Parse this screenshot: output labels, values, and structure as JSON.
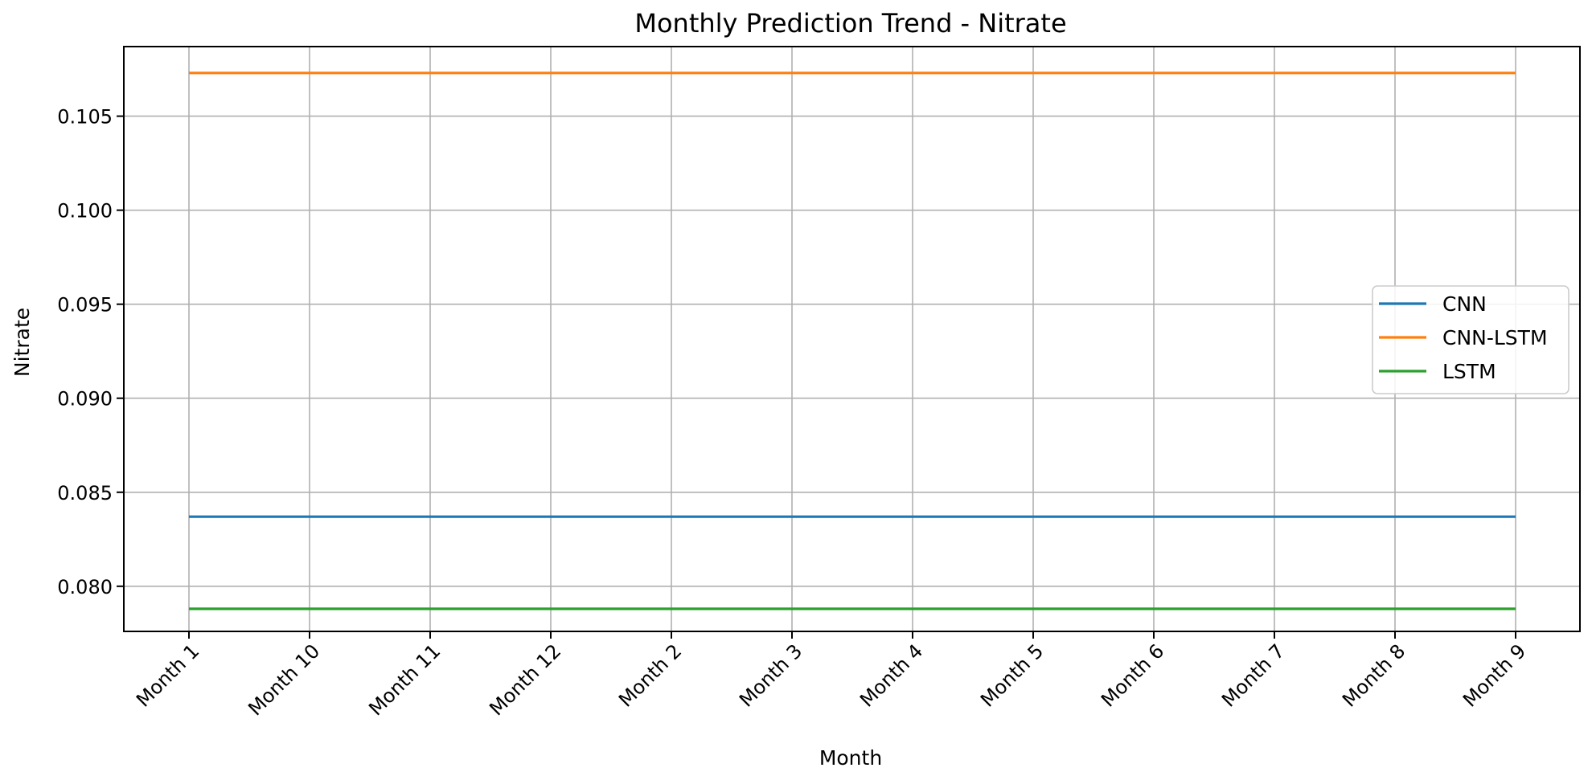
{
  "chart_data": {
    "type": "line",
    "title": "Monthly Prediction Trend - Nitrate",
    "xlabel": "Month",
    "ylabel": "Nitrate",
    "categories": [
      "Month 1",
      "Month 10",
      "Month 11",
      "Month 12",
      "Month 2",
      "Month 3",
      "Month 4",
      "Month 5",
      "Month 6",
      "Month 7",
      "Month 8",
      "Month 9"
    ],
    "ylim": [
      0.0776,
      0.1087
    ],
    "yticks": [
      0.08,
      0.085,
      0.09,
      0.095,
      0.1,
      0.105
    ],
    "ytick_labels": [
      "0.080",
      "0.085",
      "0.090",
      "0.095",
      "0.100",
      "0.105"
    ],
    "grid": true,
    "legend_position": "center-right",
    "series": [
      {
        "name": "CNN",
        "color": "#1f77b4",
        "values": [
          0.0837,
          0.0837,
          0.0837,
          0.0837,
          0.0837,
          0.0837,
          0.0837,
          0.0837,
          0.0837,
          0.0837,
          0.0837,
          0.0837
        ]
      },
      {
        "name": "CNN-LSTM",
        "color": "#ff7f0e",
        "values": [
          0.1073,
          0.1073,
          0.1073,
          0.1073,
          0.1073,
          0.1073,
          0.1073,
          0.1073,
          0.1073,
          0.1073,
          0.1073,
          0.1073
        ]
      },
      {
        "name": "LSTM",
        "color": "#2ca02c",
        "values": [
          0.0788,
          0.0788,
          0.0788,
          0.0788,
          0.0788,
          0.0788,
          0.0788,
          0.0788,
          0.0788,
          0.0788,
          0.0788,
          0.0788
        ]
      }
    ]
  }
}
